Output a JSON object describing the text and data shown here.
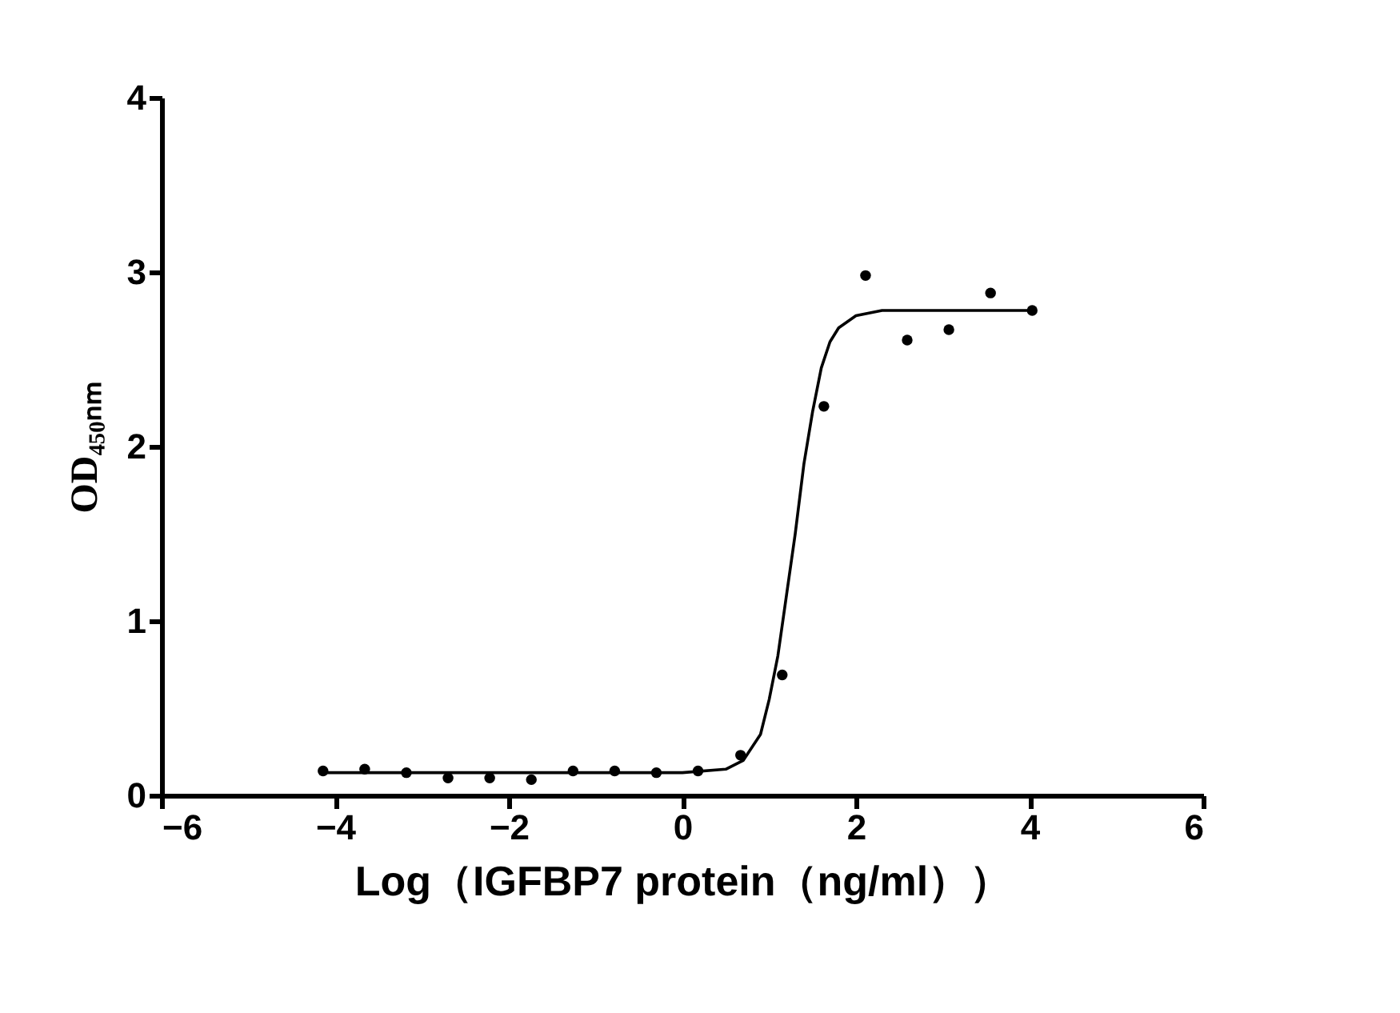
{
  "chart_data": {
    "type": "scatter",
    "xlabel": "Log（IGFBP7 protein（ng/ml））",
    "ylabel": "OD₄₅₀ₙₘ",
    "xlim": [
      -6,
      6
    ],
    "xticks": [
      -6,
      -4,
      -2,
      0,
      2,
      4,
      6
    ],
    "ylim": [
      0,
      4
    ],
    "yticks": [
      0,
      1,
      2,
      3,
      4
    ],
    "grid": false,
    "series": [
      {
        "color": "#000000",
        "marker": "circle",
        "x": [
          -4.14,
          -3.66,
          -3.18,
          -2.7,
          -2.22,
          -1.74,
          -1.26,
          -0.78,
          -0.3,
          0.18,
          0.67,
          1.15,
          1.63,
          2.11,
          2.59,
          3.07,
          3.55,
          4.03
        ],
        "values": [
          0.14,
          0.15,
          0.13,
          0.1,
          0.1,
          0.09,
          0.14,
          0.14,
          0.13,
          0.14,
          0.23,
          0.69,
          2.23,
          2.98,
          2.61,
          2.67,
          2.88,
          2.78
        ]
      },
      {
        "type": "line",
        "color": "#000000",
        "line_style": "solid",
        "marker": "none",
        "x": [
          -4.14,
          0.0,
          0.5,
          0.7,
          0.9,
          1.0,
          1.1,
          1.2,
          1.3,
          1.4,
          1.5,
          1.6,
          1.7,
          1.8,
          2.0,
          2.3,
          4.03
        ],
        "values": [
          0.13,
          0.13,
          0.15,
          0.2,
          0.35,
          0.55,
          0.8,
          1.15,
          1.5,
          1.9,
          2.2,
          2.45,
          2.6,
          2.68,
          2.75,
          2.78,
          2.78
        ]
      }
    ]
  }
}
